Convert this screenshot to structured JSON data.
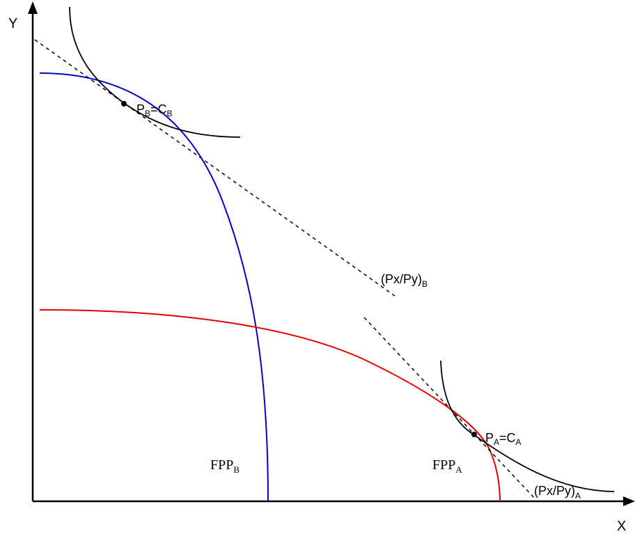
{
  "axes": {
    "y_label": "Y",
    "x_label": "X"
  },
  "labels": {
    "point_b": {
      "p": "P",
      "p_sub": "B",
      "eq": "=C",
      "c_sub": "B"
    },
    "point_a": {
      "p": "P",
      "p_sub": "A",
      "eq": "=C",
      "c_sub": "A"
    },
    "price_ratio_b": {
      "main": "(Px/Py)",
      "sub": "B"
    },
    "price_ratio_a": {
      "main": "(Px/Py)",
      "sub": "A"
    },
    "fpp_b": {
      "main": "FPP",
      "sub": "B"
    },
    "fpp_a": {
      "main": "FPP",
      "sub": "A"
    }
  },
  "colors": {
    "axis": "#000000",
    "fpp_b_curve": "#0000cc",
    "fpp_a_curve": "#e00000",
    "indifference_curve": "#000000",
    "price_line": "#000000"
  }
}
